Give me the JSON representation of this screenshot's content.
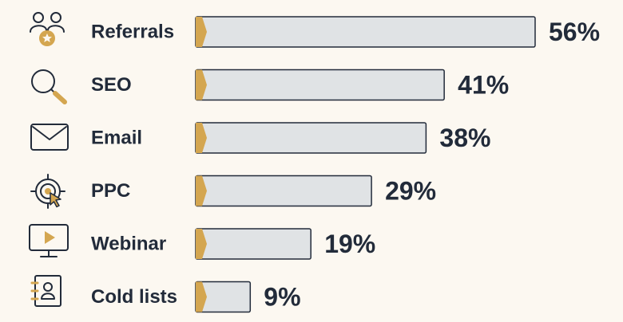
{
  "colors": {
    "background": "#fcf8f1",
    "bar_fill": "#e0e3e5",
    "bar_stroke": "#222b3a",
    "accent": "#d4a650",
    "text": "#222b3a"
  },
  "chart_data": {
    "type": "bar",
    "orientation": "horizontal",
    "categories": [
      "Referrals",
      "SEO",
      "Email",
      "PPC",
      "Webinar",
      "Cold lists"
    ],
    "values": [
      56,
      41,
      38,
      29,
      19,
      9
    ],
    "value_labels": [
      "56%",
      "41%",
      "38%",
      "29%",
      "19%",
      "9%"
    ],
    "icons": [
      "referral-people-icon",
      "magnifier-icon",
      "envelope-icon",
      "target-cursor-icon",
      "video-monitor-icon",
      "contact-book-icon"
    ],
    "unit": "%",
    "grid": false,
    "legend": "none"
  }
}
